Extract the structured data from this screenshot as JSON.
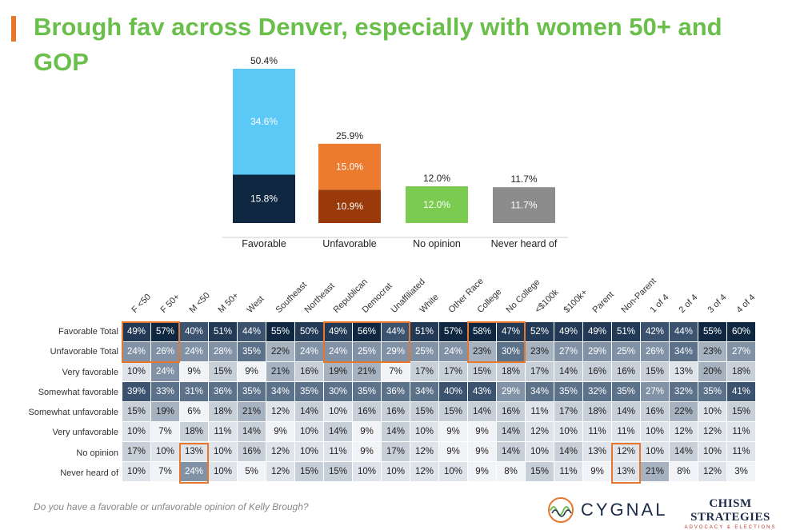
{
  "title": "Brough fav across Denver, especially with women 50+ and GOP",
  "question": "Do you have a favorable or unfavorable opinion of Kelly Brough?",
  "logos": {
    "cygnal": "CYGNAL",
    "chism_top": "CHISM STRATEGIES",
    "chism_bottom": "ADVOCACY & ELECTIONS"
  },
  "colors": {
    "accent": "#e8772e",
    "title": "#6abf4b",
    "fav_light": "#5bc8f5",
    "fav_dark": "#0f2740",
    "unfav_light": "#ec7b30",
    "unfav_dark": "#9a3a0a",
    "no_opinion": "#7acb4f",
    "never_heard": "#8c8c8c"
  },
  "chart_data": [
    {
      "type": "bar",
      "stacked": true,
      "categories": [
        "Favorable",
        "Unfavorable",
        "No opinion",
        "Never heard of"
      ],
      "totals": [
        "50.4%",
        "25.9%",
        "12.0%",
        "11.7%"
      ],
      "segments": [
        [
          {
            "value": 15.8,
            "label": "15.8%",
            "color": "#0f2740"
          },
          {
            "value": 34.6,
            "label": "34.6%",
            "color": "#5bc8f5"
          }
        ],
        [
          {
            "value": 10.9,
            "label": "10.9%",
            "color": "#9a3a0a"
          },
          {
            "value": 15.0,
            "label": "15.0%",
            "color": "#ec7b30"
          }
        ],
        [
          {
            "value": 12.0,
            "label": "12.0%",
            "color": "#7acb4f"
          }
        ],
        [
          {
            "value": 11.7,
            "label": "11.7%",
            "color": "#8c8c8c"
          }
        ]
      ],
      "ylim": [
        0,
        52
      ]
    },
    {
      "type": "table",
      "columns": [
        "F <50",
        "F 50+",
        "M <50",
        "M 50+",
        "West",
        "Southeast",
        "Northeast",
        "Republican",
        "Democrat",
        "Unaffiliated",
        "White",
        "Other Race",
        "College",
        "No College",
        "<$100k",
        "$100k+",
        "Parent",
        "Non-Parent",
        "1 of 4",
        "2 of 4",
        "3 of 4",
        "4 of 4"
      ],
      "rows": [
        {
          "label": "Favorable Total",
          "values": [
            49,
            57,
            40,
            51,
            44,
            55,
            50,
            49,
            56,
            44,
            51,
            57,
            58,
            47,
            52,
            49,
            49,
            51,
            42,
            44,
            55,
            60
          ]
        },
        {
          "label": "Unfavorable Total",
          "values": [
            24,
            26,
            24,
            28,
            35,
            22,
            24,
            24,
            25,
            29,
            25,
            24,
            23,
            30,
            23,
            27,
            29,
            25,
            26,
            34,
            23,
            27
          ]
        },
        {
          "label": "Very favorable",
          "values": [
            10,
            24,
            9,
            15,
            9,
            21,
            16,
            19,
            21,
            7,
            17,
            17,
            15,
            18,
            17,
            14,
            16,
            16,
            15,
            13,
            20,
            18
          ]
        },
        {
          "label": "Somewhat favorable",
          "values": [
            39,
            33,
            31,
            36,
            35,
            34,
            35,
            30,
            35,
            36,
            34,
            40,
            43,
            29,
            34,
            35,
            32,
            35,
            27,
            32,
            35,
            41
          ]
        },
        {
          "label": "Somewhat unfavorable",
          "values": [
            15,
            19,
            6,
            18,
            21,
            12,
            14,
            10,
            16,
            16,
            15,
            15,
            14,
            16,
            11,
            17,
            18,
            14,
            16,
            22,
            10,
            15
          ]
        },
        {
          "label": "Very unfavorable",
          "values": [
            10,
            7,
            18,
            11,
            14,
            9,
            10,
            14,
            9,
            14,
            10,
            9,
            9,
            14,
            12,
            10,
            11,
            11,
            10,
            12,
            12,
            11
          ]
        },
        {
          "label": "No opinion",
          "values": [
            17,
            10,
            13,
            10,
            16,
            12,
            10,
            11,
            9,
            17,
            12,
            9,
            9,
            14,
            10,
            14,
            13,
            12,
            10,
            14,
            10,
            11
          ]
        },
        {
          "label": "Never heard of",
          "values": [
            10,
            7,
            24,
            10,
            5,
            12,
            15,
            15,
            10,
            10,
            12,
            10,
            9,
            8,
            15,
            11,
            9,
            13,
            21,
            8,
            12,
            3
          ]
        }
      ],
      "highlights": [
        {
          "rows": [
            0,
            1
          ],
          "cols": [
            0,
            1
          ]
        },
        {
          "rows": [
            0,
            1
          ],
          "cols": [
            7,
            9
          ]
        },
        {
          "rows": [
            0,
            1
          ],
          "cols": [
            12,
            13
          ]
        },
        {
          "rows": [
            6,
            7
          ],
          "cols": [
            2,
            2
          ]
        },
        {
          "rows": [
            6,
            7
          ],
          "cols": [
            17,
            17
          ]
        }
      ]
    }
  ]
}
